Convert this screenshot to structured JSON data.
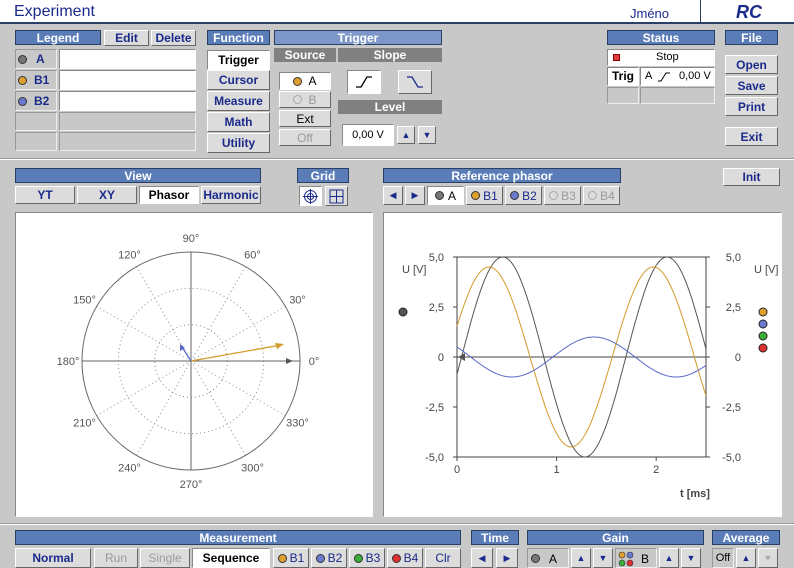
{
  "title": "Experiment",
  "user_name": "Jméno",
  "app_badge": "RC",
  "legend": {
    "header": "Legend",
    "edit": "Edit",
    "delete": "Delete",
    "items": [
      {
        "label": "A",
        "color": "#777777"
      },
      {
        "label": "B1",
        "color": "#e0a030"
      },
      {
        "label": "B2",
        "color": "#6a7ad0"
      }
    ]
  },
  "function": {
    "header": "Function",
    "items": [
      "Trigger",
      "Cursor",
      "Measure",
      "Math",
      "Utility"
    ]
  },
  "trigger": {
    "header": "Trigger",
    "source_header": "Source",
    "slope_header": "Slope",
    "level_header": "Level",
    "sources": [
      "A",
      "B",
      "Ext",
      "Off"
    ],
    "level_value": "0,00 V"
  },
  "status": {
    "header": "Status",
    "state": "Stop",
    "trig_label": "Trig",
    "trig_channel": "A",
    "trig_level": "0,00 V"
  },
  "file": {
    "header": "File",
    "open": "Open",
    "save": "Save",
    "print": "Print",
    "exit": "Exit"
  },
  "view": {
    "header": "View",
    "tabs": [
      "YT",
      "XY",
      "Phasor",
      "Harmonic"
    ],
    "selected": "Phasor"
  },
  "grid": {
    "header": "Grid"
  },
  "reference_phasor": {
    "header": "Reference phasor",
    "items": [
      "A",
      "B1",
      "B2",
      "B3",
      "B4"
    ]
  },
  "init_label": "Init",
  "phasor_plot": {
    "angle_labels": [
      "90°",
      "60°",
      "30°",
      "0°",
      "330°",
      "300°",
      "270°",
      "240°",
      "210°",
      "180°",
      "150°",
      "120°"
    ]
  },
  "chart_data": {
    "type": "line",
    "x_label": "t [ms]",
    "y_label_left": "U [V]",
    "y_label_right": "U [V]",
    "xlim": [
      0,
      2.5
    ],
    "ylim": [
      -5.0,
      5.0
    ],
    "x_ticks": [
      "0",
      "1",
      "2"
    ],
    "y_ticks": [
      "5,0",
      "2,5",
      "0",
      "-2,5",
      "-5,0"
    ],
    "grid": false,
    "series": [
      {
        "color": "#555555",
        "amplitude": 5.0,
        "period_ms": 1.65,
        "phase_deg": -10
      },
      {
        "color": "#d49a2a",
        "amplitude": 4.5,
        "period_ms": 1.65,
        "phase_deg": 20
      },
      {
        "color": "#5a6ac8",
        "amplitude": 1.0,
        "period_ms": 1.65,
        "phase_deg": 150
      }
    ],
    "right_dots": [
      "#e0a030",
      "#6a7ad0",
      "#3ab03a",
      "#e03030"
    ]
  },
  "measurement": {
    "header": "Measurement",
    "normal": "Normal",
    "run": "Run",
    "single": "Single",
    "sequence": "Sequence",
    "channels": [
      {
        "label": "B1",
        "color": "#e0a030"
      },
      {
        "label": "B2",
        "color": "#6a7ad0"
      },
      {
        "label": "B3",
        "color": "#3ab03a"
      },
      {
        "label": "B4",
        "color": "#e03030"
      }
    ],
    "clear": "Clr"
  },
  "time": {
    "header": "Time"
  },
  "gain": {
    "header": "Gain",
    "channel_a": "A",
    "channel_b": "B"
  },
  "average": {
    "header": "Average",
    "value": "Off"
  }
}
